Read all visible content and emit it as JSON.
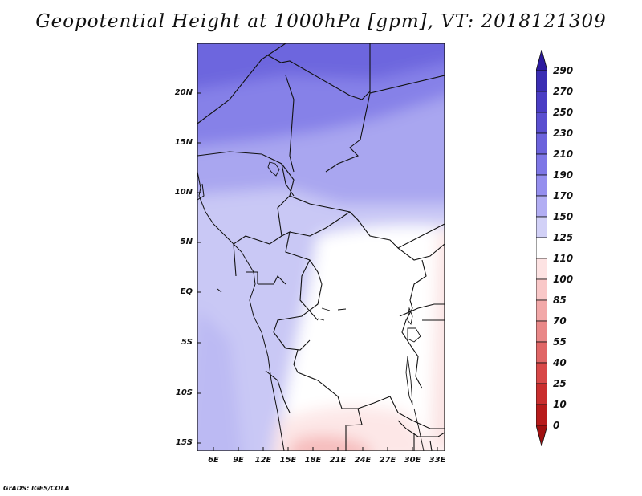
{
  "title": "Geopotential Height at 1000hPa [gpm], VT: 2018121309",
  "credit": "GrADS: IGES/COLA",
  "lat_labels": [
    "20N",
    "15N",
    "10N",
    "5N",
    "EQ",
    "5S",
    "10S",
    "15S"
  ],
  "lon_labels": [
    "6E",
    "9E",
    "12E",
    "15E",
    "18E",
    "21E",
    "24E",
    "27E",
    "30E",
    "33E"
  ],
  "colorbar": {
    "labels": [
      "290",
      "270",
      "250",
      "230",
      "210",
      "190",
      "170",
      "150",
      "125",
      "110",
      "100",
      "85",
      "70",
      "55",
      "40",
      "25",
      "10",
      "0"
    ],
    "colors": [
      "#2c1a9e",
      "#3a2db3",
      "#4a3dc4",
      "#5a4fd0",
      "#6c63dc",
      "#7e77e6",
      "#958fee",
      "#b2aef3",
      "#d2d1f7",
      "#ffffff",
      "#fde3e3",
      "#f9c8c8",
      "#f2a8a8",
      "#e98888",
      "#e06666",
      "#d84848",
      "#c92e2e",
      "#b71b1b",
      "#a01010"
    ]
  },
  "map": {
    "lon_range": [
      4,
      34
    ],
    "lat_range": [
      -16.5,
      24.5
    ],
    "projection": "latlon"
  }
}
